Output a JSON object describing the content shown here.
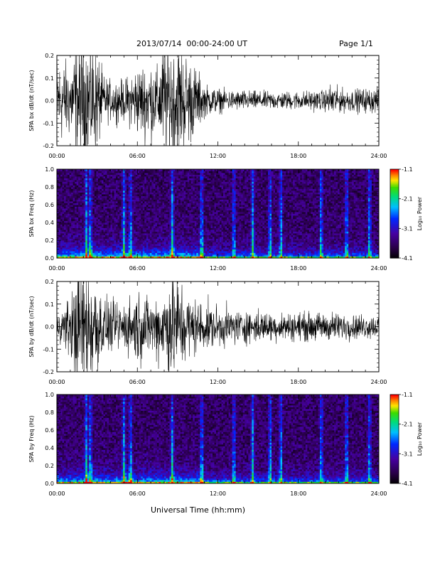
{
  "header": {
    "title": "2013/07/14  00:00-24:00 UT",
    "page": "Page 1/1"
  },
  "bottom_xlabel": "Universal Time (hh:mm)",
  "chart_data": [
    {
      "type": "line",
      "title": "",
      "ylabel": "SPA bx dB/dt (nT/sec)",
      "xlabel": "",
      "x_range_hours": [
        0,
        24
      ],
      "x_ticks": [
        "00:00",
        "06:00",
        "12:00",
        "18:00",
        "24:00"
      ],
      "ylim": [
        -0.2,
        0.2
      ],
      "y_ticks": [
        "-0.2",
        "-0.1",
        "0.0",
        "0.1",
        "0.2"
      ],
      "series": [
        {
          "color": "#000000",
          "x": [
            0,
            1,
            1.5,
            2,
            2.5,
            3,
            3.5,
            4,
            5,
            6,
            7,
            7.5,
            8,
            8.5,
            9,
            9.5,
            10,
            10.5,
            11,
            12,
            13,
            14,
            15,
            16,
            17,
            18,
            19,
            20,
            20.5,
            21,
            22,
            23,
            24
          ],
          "envelope": [
            0.22,
            0.18,
            0.3,
            0.3,
            0.3,
            0.25,
            0.12,
            0.1,
            0.1,
            0.17,
            0.2,
            0.16,
            0.3,
            0.3,
            0.3,
            0.25,
            0.2,
            0.15,
            0.08,
            0.06,
            0.05,
            0.05,
            0.045,
            0.045,
            0.045,
            0.045,
            0.05,
            0.05,
            0.09,
            0.06,
            0.055,
            0.06,
            0.06
          ]
        }
      ]
    },
    {
      "type": "heatmap",
      "title": "",
      "ylabel": "SPA bx Freq (Hz)",
      "xlabel": "",
      "x_range_hours": [
        0,
        24
      ],
      "x_ticks": [
        "00:00",
        "06:00",
        "12:00",
        "18:00",
        "24:00"
      ],
      "ylim": [
        0,
        1.0
      ],
      "y_ticks": [
        "0.0",
        "0.2",
        "0.4",
        "0.6",
        "0.8",
        "1.0"
      ],
      "colorbar": {
        "label": "Log₁₀ Power",
        "range": [
          -4.1,
          -1.1
        ],
        "ticks": [
          "-1.1",
          "-2.1",
          "-3.1",
          "-4.1"
        ]
      },
      "bursts_hours": [
        2.2,
        2.5,
        5.0,
        5.5,
        8.6,
        10.8,
        13.2,
        14.6,
        15.9,
        16.7,
        19.7,
        21.6,
        23.3
      ]
    },
    {
      "type": "line",
      "title": "",
      "ylabel": "SPA by dB/dt (nT/sec)",
      "xlabel": "",
      "x_range_hours": [
        0,
        24
      ],
      "x_ticks": [
        "00:00",
        "06:00",
        "12:00",
        "18:00",
        "24:00"
      ],
      "ylim": [
        -0.2,
        0.2
      ],
      "y_ticks": [
        "-0.2",
        "-0.1",
        "0.0",
        "0.1",
        "0.2"
      ],
      "series": [
        {
          "color": "#000000",
          "x": [
            0,
            0.5,
            1,
            1.5,
            2,
            2.5,
            3,
            3.5,
            4,
            5,
            6,
            7,
            8,
            8.5,
            9,
            9.5,
            10,
            11,
            12,
            13,
            14,
            15,
            16,
            17,
            18,
            19,
            20,
            21,
            22,
            23,
            24
          ],
          "envelope": [
            0.05,
            0.1,
            0.16,
            0.28,
            0.3,
            0.3,
            0.24,
            0.14,
            0.12,
            0.12,
            0.18,
            0.14,
            0.2,
            0.3,
            0.25,
            0.2,
            0.15,
            0.12,
            0.1,
            0.09,
            0.08,
            0.08,
            0.07,
            0.07,
            0.07,
            0.07,
            0.07,
            0.07,
            0.06,
            0.06,
            0.06
          ]
        }
      ]
    },
    {
      "type": "heatmap",
      "title": "",
      "ylabel": "SPA by Freq (Hz)",
      "xlabel": "Universal Time (hh:mm)",
      "x_range_hours": [
        0,
        24
      ],
      "x_ticks": [
        "00:00",
        "06:00",
        "12:00",
        "18:00",
        "24:00"
      ],
      "ylim": [
        0,
        1.0
      ],
      "y_ticks": [
        "0.0",
        "0.2",
        "0.4",
        "0.6",
        "0.8",
        "1.0"
      ],
      "colorbar": {
        "label": "Log₁₀ Power",
        "range": [
          -4.1,
          -1.1
        ],
        "ticks": [
          "-1.1",
          "-2.1",
          "-3.1",
          "-4.1"
        ]
      },
      "bursts_hours": [
        2.2,
        2.5,
        5.0,
        5.5,
        8.6,
        10.8,
        13.2,
        14.6,
        15.9,
        16.7,
        19.7,
        21.6,
        23.3
      ]
    }
  ]
}
